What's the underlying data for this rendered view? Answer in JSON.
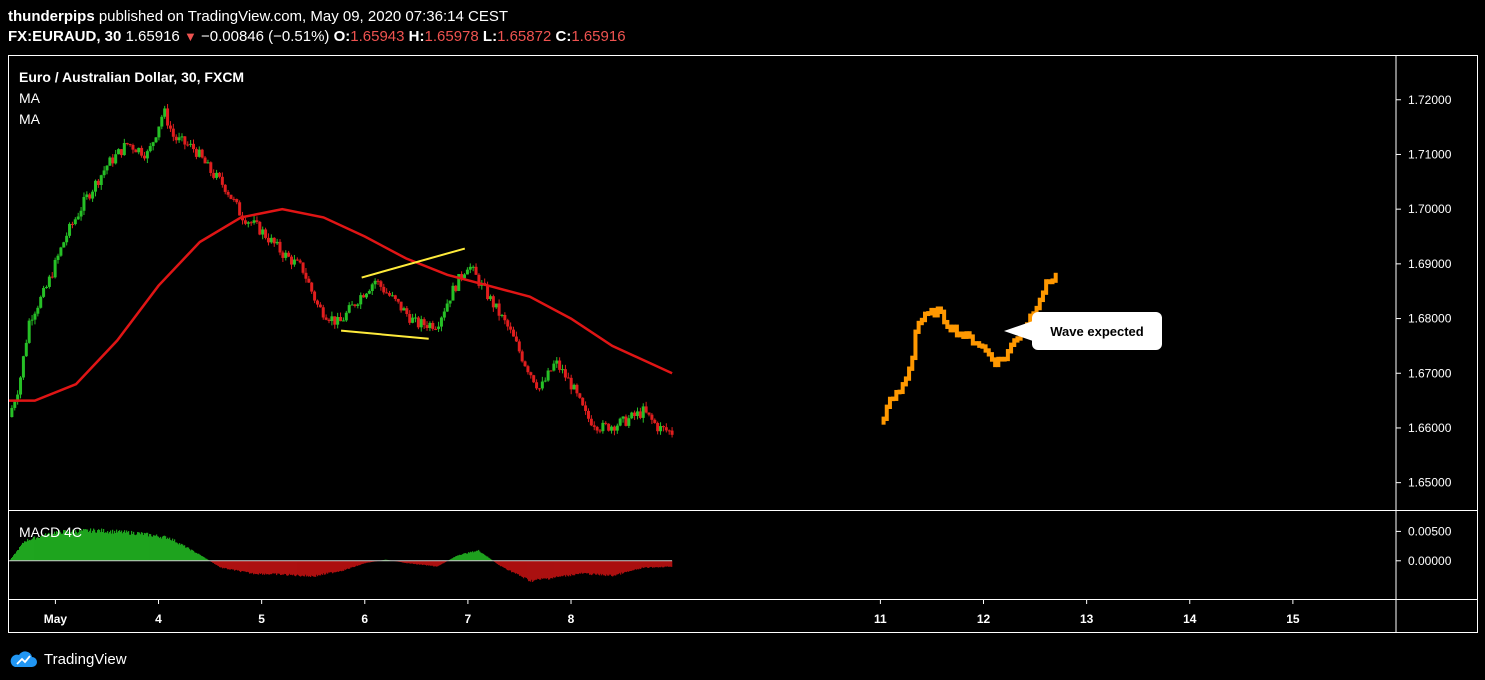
{
  "header": {
    "author": "thunderpips",
    "published_text": "published on TradingView.com, May 09, 2020 07:36:14 CEST",
    "symbol": "FX:EURAUD, 30",
    "last": "1.65916",
    "change": "−0.00846 (−0.51%)",
    "o_label": "O:",
    "o_value": "1.65943",
    "h_label": "H:",
    "h_value": "1.65978",
    "l_label": "L:",
    "l_value": "1.65872",
    "c_label": "C:",
    "c_value": "1.65916"
  },
  "legend": {
    "title": "Euro / Australian Dollar, 30, FXCM",
    "ma1": "MA",
    "ma2": "MA",
    "macd": "MACD 4C"
  },
  "annotation": {
    "callout_text": "Wave expected"
  },
  "branding": {
    "logo_text": "TradingView"
  },
  "colors": {
    "up": "#26c026",
    "down": "#e01e1e",
    "ma": "#e01515",
    "projection": "#ff9800",
    "trendline": "#ffeb3b",
    "macd_up": "#1fa51f",
    "macd_down": "#b01010",
    "axis_line": "#ffffff",
    "last_price": "#ef5350"
  },
  "chart_data": {
    "type": "candlestick",
    "price_axis": {
      "ylim": [
        1.645,
        1.728
      ],
      "ticks": [
        "1.72000",
        "1.71000",
        "1.70000",
        "1.69000",
        "1.68000",
        "1.67000",
        "1.66000",
        "1.65000"
      ],
      "tick_values": [
        1.72,
        1.71,
        1.7,
        1.69,
        1.68,
        1.67,
        1.66,
        1.65
      ]
    },
    "macd_axis": {
      "ylim": [
        -0.0065,
        0.0083
      ],
      "ticks": [
        "0.00500",
        "0.00000"
      ],
      "tick_values": [
        0.005,
        0.0
      ]
    },
    "time_axis": {
      "xlim": [
        2.55,
        16.0
      ],
      "ticks": [
        "May",
        "4",
        "5",
        "6",
        "7",
        "8",
        "11",
        "12",
        "13",
        "14",
        "15"
      ],
      "tick_days": [
        3,
        4,
        5,
        6,
        7,
        8,
        11,
        12,
        13,
        14,
        15
      ]
    },
    "price_path": [
      [
        2.55,
        1.662
      ],
      [
        2.65,
        1.668
      ],
      [
        2.75,
        1.68
      ],
      [
        2.9,
        1.685
      ],
      [
        3.1,
        1.695
      ],
      [
        3.3,
        1.702
      ],
      [
        3.5,
        1.708
      ],
      [
        3.7,
        1.712
      ],
      [
        3.9,
        1.71
      ],
      [
        4.05,
        1.718
      ],
      [
        4.15,
        1.713
      ],
      [
        4.35,
        1.711
      ],
      [
        4.5,
        1.707
      ],
      [
        4.65,
        1.704
      ],
      [
        4.8,
        1.699
      ],
      [
        5.0,
        1.696
      ],
      [
        5.2,
        1.692
      ],
      [
        5.4,
        1.689
      ],
      [
        5.55,
        1.682
      ],
      [
        5.75,
        1.679
      ],
      [
        5.95,
        1.684
      ],
      [
        6.1,
        1.687
      ],
      [
        6.3,
        1.683
      ],
      [
        6.5,
        1.679
      ],
      [
        6.7,
        1.679
      ],
      [
        6.85,
        1.685
      ],
      [
        7.0,
        1.69
      ],
      [
        7.2,
        1.684
      ],
      [
        7.4,
        1.678
      ],
      [
        7.55,
        1.672
      ],
      [
        7.7,
        1.667
      ],
      [
        7.85,
        1.672
      ],
      [
        8.0,
        1.668
      ],
      [
        8.15,
        1.662
      ],
      [
        8.3,
        1.66
      ],
      [
        8.5,
        1.661
      ],
      [
        8.7,
        1.663
      ],
      [
        8.85,
        1.66
      ],
      [
        8.98,
        1.6592
      ]
    ],
    "ma_path": [
      [
        2.55,
        1.665
      ],
      [
        2.8,
        1.665
      ],
      [
        3.2,
        1.668
      ],
      [
        3.6,
        1.676
      ],
      [
        4.0,
        1.686
      ],
      [
        4.4,
        1.694
      ],
      [
        4.8,
        1.6985
      ],
      [
        5.2,
        1.7
      ],
      [
        5.6,
        1.6985
      ],
      [
        6.0,
        1.695
      ],
      [
        6.4,
        1.691
      ],
      [
        6.8,
        1.688
      ],
      [
        7.2,
        1.686
      ],
      [
        7.6,
        1.684
      ],
      [
        8.0,
        1.68
      ],
      [
        8.4,
        1.675
      ],
      [
        8.98,
        1.67
      ]
    ],
    "trendlines": [
      {
        "from": [
          5.97,
          1.6875
        ],
        "to": [
          6.97,
          1.6928
        ]
      },
      {
        "from": [
          5.77,
          1.6778
        ],
        "to": [
          6.62,
          1.6763
        ]
      }
    ],
    "projection_path": [
      [
        11.0,
        1.661
      ],
      [
        11.1,
        1.665
      ],
      [
        11.2,
        1.667
      ],
      [
        11.3,
        1.672
      ],
      [
        11.35,
        1.679
      ],
      [
        11.45,
        1.6805
      ],
      [
        11.55,
        1.6815
      ],
      [
        11.65,
        1.679
      ],
      [
        11.75,
        1.6775
      ],
      [
        11.85,
        1.6765
      ],
      [
        11.95,
        1.6755
      ],
      [
        12.05,
        1.6735
      ],
      [
        12.12,
        1.672
      ],
      [
        12.2,
        1.6728
      ],
      [
        12.3,
        1.676
      ],
      [
        12.4,
        1.6785
      ],
      [
        12.5,
        1.682
      ],
      [
        12.6,
        1.686
      ],
      [
        12.7,
        1.688
      ]
    ],
    "macd_path": [
      [
        2.55,
        0.0
      ],
      [
        2.7,
        0.0035
      ],
      [
        3.0,
        0.005
      ],
      [
        3.4,
        0.0053
      ],
      [
        3.8,
        0.0048
      ],
      [
        4.1,
        0.004
      ],
      [
        4.4,
        0.001
      ],
      [
        4.6,
        -0.0012
      ],
      [
        4.9,
        -0.0022
      ],
      [
        5.2,
        -0.0024
      ],
      [
        5.5,
        -0.0027
      ],
      [
        5.8,
        -0.0016
      ],
      [
        6.0,
        -0.0004
      ],
      [
        6.2,
        0.0002
      ],
      [
        6.4,
        -0.0004
      ],
      [
        6.7,
        -0.001
      ],
      [
        6.9,
        0.001
      ],
      [
        7.1,
        0.0018
      ],
      [
        7.3,
        -0.0008
      ],
      [
        7.6,
        -0.0035
      ],
      [
        7.8,
        -0.003
      ],
      [
        8.1,
        -0.0022
      ],
      [
        8.4,
        -0.0026
      ],
      [
        8.7,
        -0.0012
      ],
      [
        8.98,
        -0.001
      ]
    ],
    "last_price": 1.65916
  }
}
